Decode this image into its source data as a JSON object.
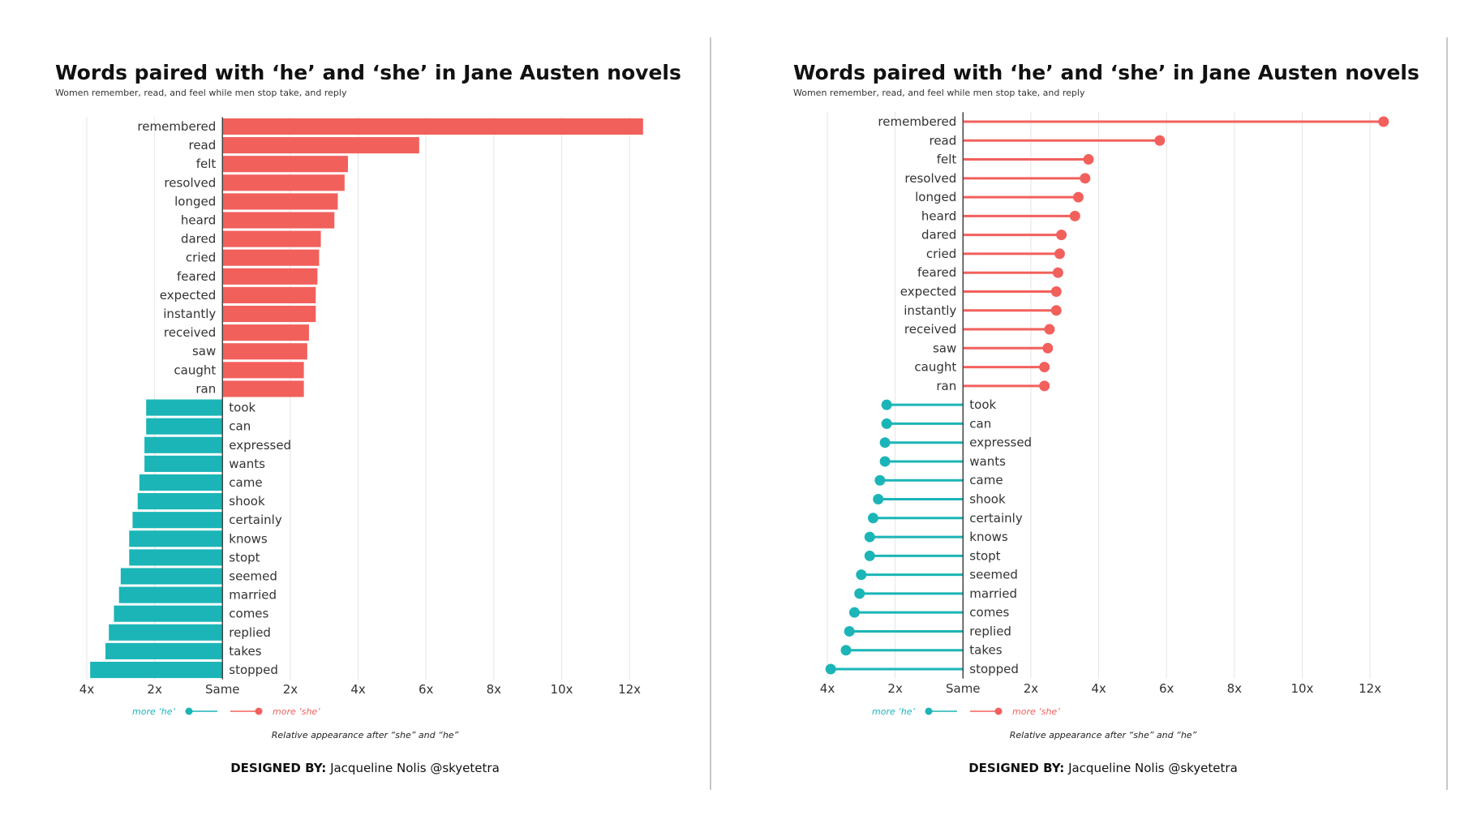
{
  "chart_data": [
    {
      "type": "bar",
      "title": "Words paired with ‘he’ and ‘she’ in Jane Austen novels",
      "subtitle": "Women remember, read, and feel while men stop take, and reply",
      "xlabel": "Relative appearance after “she” and “he”",
      "x_ticks": [
        "4x",
        "2x",
        "Same",
        "2x",
        "4x",
        "6x",
        "8x",
        "10x",
        "12x"
      ],
      "x_tick_values": [
        -4,
        -2,
        0,
        2,
        4,
        6,
        8,
        10,
        12
      ],
      "xlim": [
        -4,
        12.5
      ],
      "grid": true,
      "legend": {
        "he_label": "more ‘he’",
        "she_label": "more ‘she’",
        "position": "bottom"
      },
      "series": [
        {
          "group": "she",
          "color": "#F2605C",
          "categories": [
            "remembered",
            "read",
            "felt",
            "resolved",
            "longed",
            "heard",
            "dared",
            "cried",
            "feared",
            "expected",
            "instantly",
            "received",
            "saw",
            "caught",
            "ran"
          ],
          "values": [
            12.4,
            5.8,
            3.7,
            3.6,
            3.4,
            3.3,
            2.9,
            2.85,
            2.8,
            2.75,
            2.75,
            2.55,
            2.5,
            2.4,
            2.4
          ]
        },
        {
          "group": "he",
          "color": "#1BB5B7",
          "categories": [
            "took",
            "can",
            "expressed",
            "wants",
            "came",
            "shook",
            "certainly",
            "knows",
            "stopt",
            "seemed",
            "married",
            "comes",
            "replied",
            "takes",
            "stopped"
          ],
          "values": [
            -2.25,
            -2.25,
            -2.3,
            -2.3,
            -2.45,
            -2.5,
            -2.65,
            -2.75,
            -2.75,
            -3.0,
            -3.05,
            -3.2,
            -3.35,
            -3.45,
            -3.9
          ]
        }
      ],
      "credit_label": "DESIGNED BY:",
      "credit_name": "Jacqueline Nolis @skyetetra"
    },
    {
      "type": "lollipop",
      "title": "Words paired with ‘he’ and ‘she’ in Jane Austen novels",
      "subtitle": "Women remember, read, and feel while men stop take, and reply",
      "xlabel": "Relative appearance after “she” and “he”",
      "x_ticks": [
        "4x",
        "2x",
        "Same",
        "2x",
        "4x",
        "6x",
        "8x",
        "10x",
        "12x"
      ],
      "x_tick_values": [
        -4,
        -2,
        0,
        2,
        4,
        6,
        8,
        10,
        12
      ],
      "xlim": [
        -4,
        12.5
      ],
      "grid": true,
      "legend": {
        "he_label": "more ‘he’",
        "she_label": "more ‘she’",
        "position": "bottom"
      },
      "series": [
        {
          "group": "she",
          "color": "#F2605C",
          "categories": [
            "remembered",
            "read",
            "felt",
            "resolved",
            "longed",
            "heard",
            "dared",
            "cried",
            "feared",
            "expected",
            "instantly",
            "received",
            "saw",
            "caught",
            "ran"
          ],
          "values": [
            12.4,
            5.8,
            3.7,
            3.6,
            3.4,
            3.3,
            2.9,
            2.85,
            2.8,
            2.75,
            2.75,
            2.55,
            2.5,
            2.4,
            2.4
          ]
        },
        {
          "group": "he",
          "color": "#1BB5B7",
          "categories": [
            "took",
            "can",
            "expressed",
            "wants",
            "came",
            "shook",
            "certainly",
            "knows",
            "stopt",
            "seemed",
            "married",
            "comes",
            "replied",
            "takes",
            "stopped"
          ],
          "values": [
            -2.25,
            -2.25,
            -2.3,
            -2.3,
            -2.45,
            -2.5,
            -2.65,
            -2.75,
            -2.75,
            -3.0,
            -3.05,
            -3.2,
            -3.35,
            -3.45,
            -3.9
          ]
        }
      ],
      "credit_label": "DESIGNED BY:",
      "credit_name": "Jacqueline Nolis @skyetetra"
    }
  ]
}
